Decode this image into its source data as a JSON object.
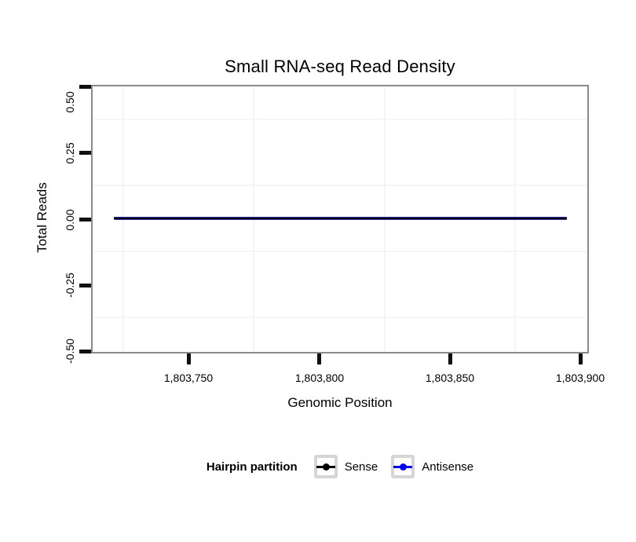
{
  "title": "Small RNA-seq Read Density",
  "axes": {
    "x": {
      "title": "Genomic Position",
      "ticks": [
        "1,803,750",
        "1,803,800",
        "1,803,850",
        "1,803,900"
      ]
    },
    "y": {
      "title": "Total Reads",
      "ticks": [
        "0.50",
        "0.25",
        "0.00",
        "-0.25",
        "-0.50"
      ]
    }
  },
  "legend": {
    "title": "Hairpin partition",
    "items": [
      {
        "label": "Sense",
        "color": "#000000",
        "icon": "line-with-point-icon"
      },
      {
        "label": "Antisense",
        "color": "#0000ee",
        "icon": "line-with-point-icon"
      }
    ]
  },
  "colors": {
    "sense": "#000000",
    "antisense": "#0000ee",
    "panel_border": "#8a8a8a",
    "minor_gridline": "#f5f5f5",
    "legend_key_border": "#d5d5d5",
    "background": "#ffffff"
  },
  "chart_data": {
    "type": "line",
    "title": "Small RNA-seq Read Density",
    "xlabel": "Genomic Position",
    "ylabel": "Total Reads",
    "xlim": [
      1803713,
      1803903
    ],
    "ylim": [
      -0.5,
      0.5
    ],
    "x_ticks": [
      1803750,
      1803800,
      1803850,
      1803900
    ],
    "y_ticks": [
      0.5,
      0.25,
      0.0,
      -0.25,
      -0.5
    ],
    "grid": "minor gridlines only (midpoints between ticks), very light gray; white panel",
    "legend_position": "bottom",
    "legend_title": "Hairpin partition",
    "series": [
      {
        "name": "Sense",
        "color": "#000000",
        "x": [
          1803721,
          1803895
        ],
        "y": [
          0,
          0
        ]
      },
      {
        "name": "Antisense",
        "color": "#0000ee",
        "x": [
          1803721,
          1803895
        ],
        "y": [
          0,
          0
        ]
      }
    ]
  }
}
